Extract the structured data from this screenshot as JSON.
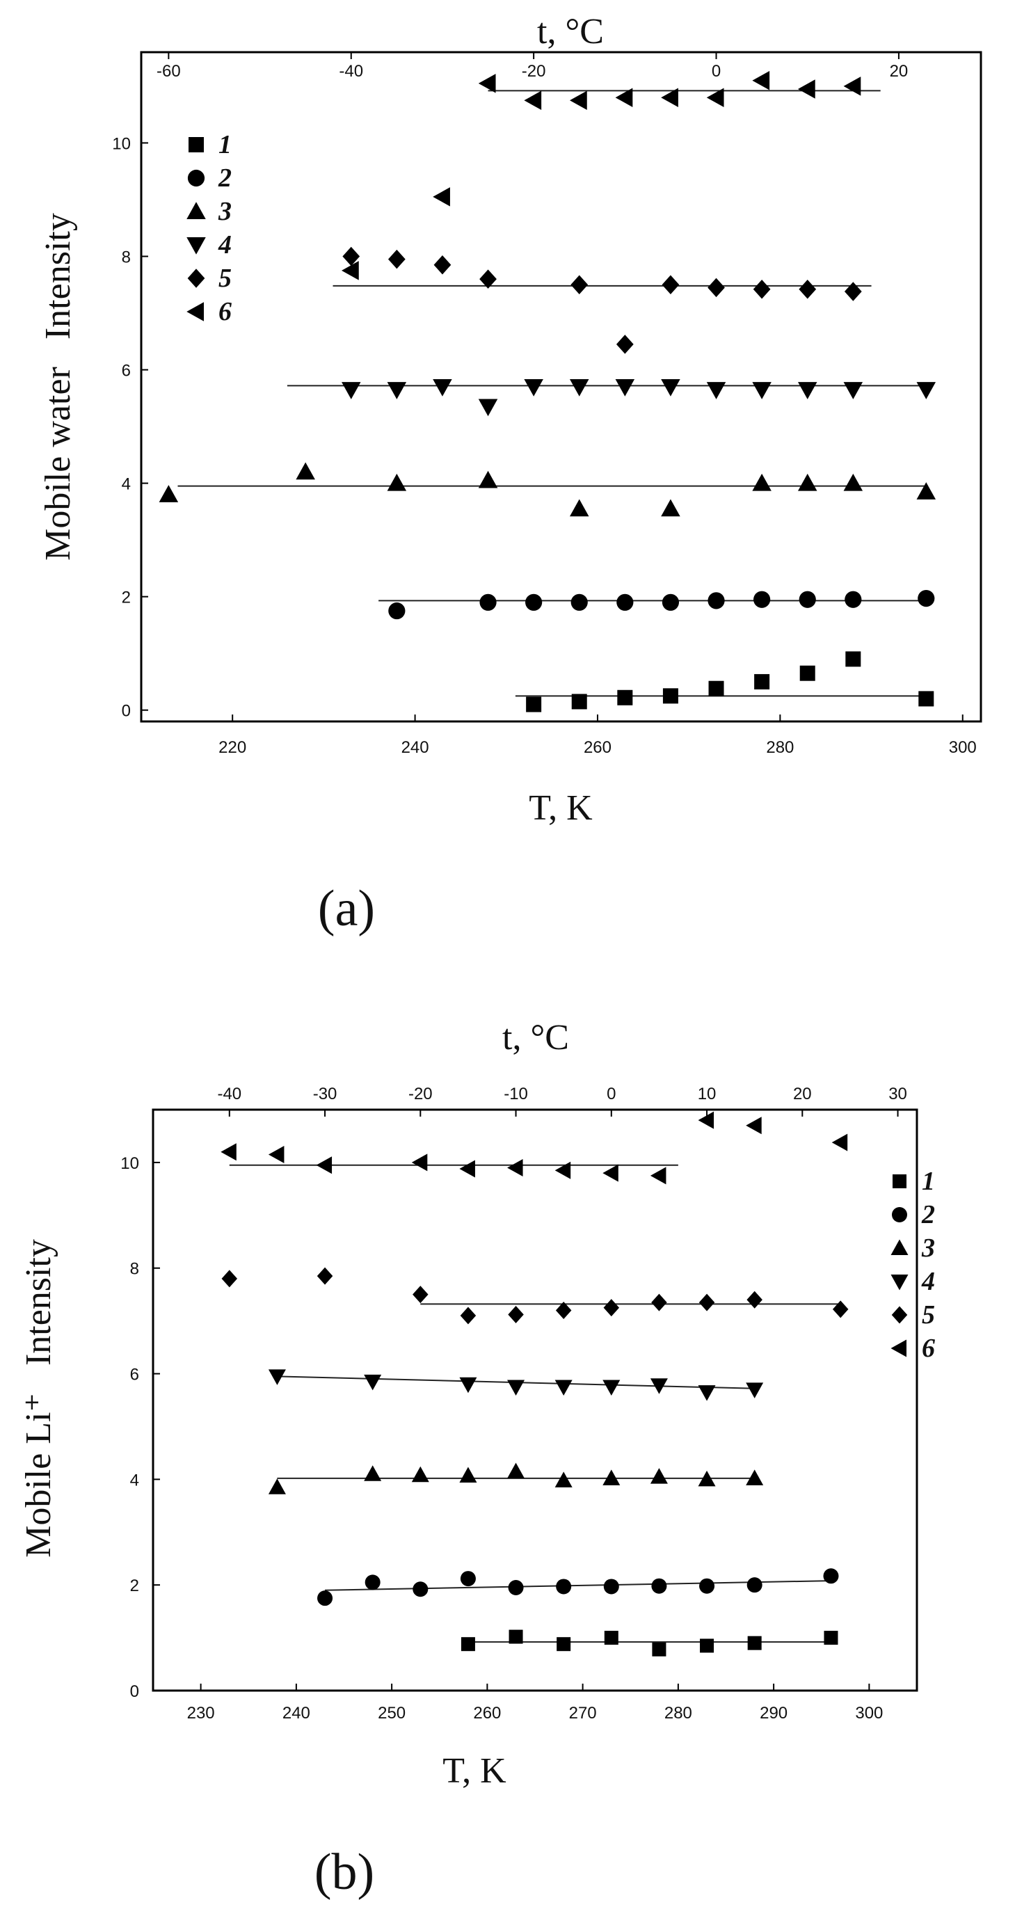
{
  "figure": {
    "panel_labels": [
      "(a)",
      "(b)"
    ]
  },
  "chart_data": [
    {
      "type": "scatter",
      "panel": "(a)",
      "xlabel": "T, K",
      "ylabel": "Mobile water   Intensity",
      "top_axis_label": "t, °C",
      "xlim": [
        210,
        302
      ],
      "ylim": [
        -0.2,
        11.6
      ],
      "x_ticks": [
        220,
        240,
        260,
        280,
        300
      ],
      "y_ticks": [
        0,
        2,
        4,
        6,
        8,
        10
      ],
      "top_ticks": [
        -60,
        -40,
        -20,
        0,
        20
      ],
      "legend_position": "top-left",
      "series": [
        {
          "name": "1",
          "marker": "square",
          "x": [
            253,
            258,
            263,
            268,
            273,
            278,
            283,
            288,
            296
          ],
          "y": [
            0.1,
            0.15,
            0.22,
            0.25,
            0.38,
            0.5,
            0.65,
            0.9,
            0.2
          ],
          "fit": {
            "x": [
              251,
              296
            ],
            "y": [
              0.25,
              0.25
            ]
          }
        },
        {
          "name": "2",
          "marker": "circle",
          "x": [
            238,
            248,
            253,
            258,
            263,
            268,
            273,
            278,
            283,
            288,
            296
          ],
          "y": [
            1.75,
            1.9,
            1.9,
            1.9,
            1.9,
            1.9,
            1.93,
            1.95,
            1.95,
            1.95,
            1.97
          ],
          "fit": {
            "x": [
              236,
              296
            ],
            "y": [
              1.93,
              1.93
            ]
          }
        },
        {
          "name": "3",
          "marker": "triangle-up",
          "x": [
            213,
            228,
            238,
            248,
            258,
            268,
            278,
            283,
            288,
            296
          ],
          "y": [
            3.8,
            4.2,
            4.0,
            4.05,
            3.55,
            3.55,
            4.0,
            4.0,
            4.0,
            3.85
          ],
          "fit": {
            "x": [
              214,
              296
            ],
            "y": [
              3.95,
              3.95
            ]
          }
        },
        {
          "name": "4",
          "marker": "triangle-down",
          "x": [
            233,
            238,
            243,
            248,
            253,
            258,
            263,
            268,
            273,
            278,
            283,
            288,
            296
          ],
          "y": [
            5.65,
            5.65,
            5.7,
            5.35,
            5.7,
            5.7,
            5.7,
            5.7,
            5.65,
            5.65,
            5.65,
            5.65,
            5.65
          ],
          "fit": {
            "x": [
              226,
              296
            ],
            "y": [
              5.72,
              5.72
            ]
          }
        },
        {
          "name": "5",
          "marker": "diamond",
          "x": [
            233,
            238,
            243,
            248,
            258,
            263,
            268,
            273,
            278,
            283,
            288
          ],
          "y": [
            8.0,
            7.95,
            7.85,
            7.6,
            7.5,
            6.45,
            7.5,
            7.45,
            7.42,
            7.42,
            7.38
          ],
          "fit": {
            "x": [
              231,
              290
            ],
            "y": [
              7.48,
              7.48
            ]
          }
        },
        {
          "name": "6",
          "marker": "triangle-left",
          "x": [
            233,
            243,
            248,
            253,
            258,
            263,
            268,
            273,
            278,
            283,
            288
          ],
          "y": [
            7.75,
            9.05,
            11.05,
            10.75,
            10.75,
            10.8,
            10.8,
            10.8,
            11.1,
            10.95,
            11.0
          ],
          "fit": {
            "x": [
              248,
              291
            ],
            "y": [
              10.92,
              10.92
            ]
          }
        }
      ],
      "legend": [
        "1",
        "2",
        "3",
        "4",
        "5",
        "6"
      ]
    },
    {
      "type": "scatter",
      "panel": "(b)",
      "xlabel": "T, K",
      "ylabel": "Mobile Li⁺   Intensity",
      "top_axis_label": "t, °C",
      "xlim": [
        225,
        305
      ],
      "ylim": [
        0,
        11
      ],
      "x_ticks": [
        230,
        240,
        250,
        260,
        270,
        280,
        290,
        300
      ],
      "y_ticks": [
        0,
        2,
        4,
        6,
        8,
        10
      ],
      "top_ticks": [
        -40,
        -30,
        -20,
        -10,
        0,
        10,
        20,
        30
      ],
      "legend_position": "right",
      "series": [
        {
          "name": "1",
          "marker": "square",
          "x": [
            258,
            263,
            268,
            273,
            278,
            283,
            288,
            296
          ],
          "y": [
            0.88,
            1.02,
            0.88,
            1.0,
            0.78,
            0.85,
            0.9,
            1.0
          ],
          "fit": {
            "x": [
              258,
              296
            ],
            "y": [
              0.92,
              0.92
            ]
          }
        },
        {
          "name": "2",
          "marker": "circle",
          "x": [
            243,
            248,
            253,
            258,
            263,
            268,
            273,
            278,
            283,
            288,
            296
          ],
          "y": [
            1.75,
            2.05,
            1.92,
            2.12,
            1.95,
            1.97,
            1.97,
            1.98,
            1.98,
            2.0,
            2.17
          ],
          "fit": {
            "x": [
              243,
              296
            ],
            "y": [
              1.9,
              2.08
            ]
          }
        },
        {
          "name": "3",
          "marker": "triangle-up",
          "x": [
            238,
            248,
            253,
            258,
            263,
            268,
            273,
            278,
            283,
            288
          ],
          "y": [
            3.85,
            4.1,
            4.08,
            4.07,
            4.15,
            3.98,
            4.02,
            4.05,
            4.0,
            4.02
          ],
          "fit": {
            "x": [
              238,
              288
            ],
            "y": [
              4.02,
              4.02
            ]
          }
        },
        {
          "name": "4",
          "marker": "triangle-down",
          "x": [
            238,
            248,
            258,
            263,
            268,
            273,
            278,
            283,
            288
          ],
          "y": [
            5.95,
            5.85,
            5.8,
            5.75,
            5.75,
            5.75,
            5.78,
            5.65,
            5.7
          ],
          "fit": {
            "x": [
              238,
              288
            ],
            "y": [
              5.95,
              5.72
            ]
          }
        },
        {
          "name": "5",
          "marker": "diamond",
          "x": [
            233,
            243,
            253,
            258,
            263,
            268,
            273,
            278,
            283,
            288,
            297
          ],
          "y": [
            7.8,
            7.85,
            7.5,
            7.1,
            7.12,
            7.2,
            7.25,
            7.35,
            7.35,
            7.4,
            7.22
          ],
          "fit": {
            "x": [
              253,
              297
            ],
            "y": [
              7.32,
              7.32
            ]
          }
        },
        {
          "name": "6",
          "marker": "triangle-left",
          "x": [
            233,
            238,
            243,
            253,
            258,
            263,
            268,
            273,
            278,
            283,
            288,
            297
          ],
          "y": [
            10.2,
            10.15,
            9.95,
            10.0,
            9.88,
            9.9,
            9.85,
            9.8,
            9.75,
            10.8,
            10.7,
            10.38
          ],
          "fit": {
            "x": [
              233,
              280
            ],
            "y": [
              9.95,
              9.95
            ]
          }
        }
      ],
      "legend": [
        "1",
        "2",
        "3",
        "4",
        "5",
        "6"
      ]
    }
  ]
}
